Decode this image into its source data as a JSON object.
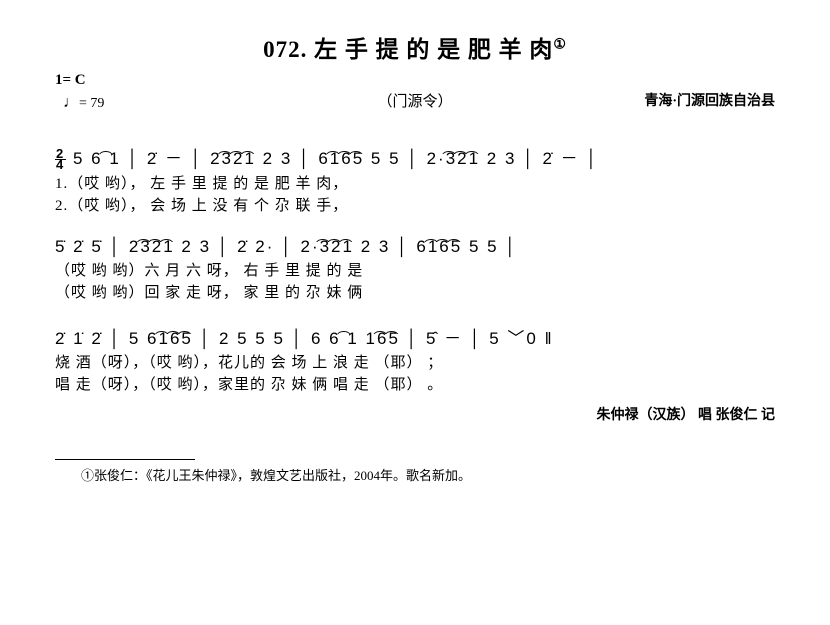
{
  "title": "072. 左 手 提 的 是 肥 羊 肉",
  "title_sup": "①",
  "key": "1= C",
  "tempo_value": "= 79",
  "subtitle": "（门源令）",
  "origin": "青海·门源回族自治县",
  "systems": [
    {
      "music": "  5   6͡ 1 │ 2̇   － │ 2͡3͡2͡1  2  3 │ 6͡1͡6͡5  5  5 │ 2·͡3͡2͡1  2  3 │ 2̇  － │",
      "lyric1": "1.（哎          哟），    左      手 里 提         的 是   肥          羊     肉，",
      "lyric2": "2.（哎          哟），    会      场 上 没         有 个   尕          联     手，"
    },
    {
      "music": " 5̇   2̇  5̇ │ 2͡3͡2͡1  2  3 │ 2̇  2·  │ 2·͡3͡2͡1   2  3 │ 6͡1͡6͡5   5  5 │",
      "lyric1": "（哎  哟 哟）六       月     六  呀，    右        手  里   提          的  是",
      "lyric2": "（哎  哟 哟）回       家     走  呀，    家        里  的   尕          妹  俩"
    },
    {
      "music": " 2̇   1̇  2̇  │ 5   6͡1͡6͡5 │ 2   5 5 5 │ 6 6͡ 1  1͡6͡5 │ 5̂  － │  5 ﹀0 ‖",
      "lyric1": "烧   酒（呀），（哎           哟），花儿的   会 场 上 浪      走     （耶） ；",
      "lyric2": "唱   走（呀），（哎           哟），家里的   尕 妹 俩 唱      走     （耶） 。"
    }
  ],
  "credit": "朱仲禄（汉族） 唱  张俊仁  记",
  "footnote": "①张俊仁：《花儿王朱仲禄》，敦煌文艺出版社，2004年。歌名新加。"
}
